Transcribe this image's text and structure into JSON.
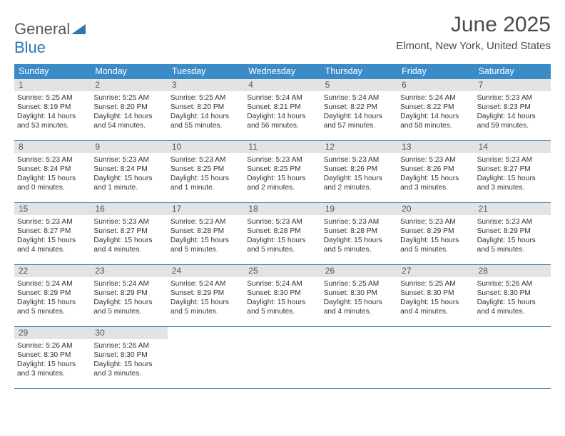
{
  "logo": {
    "word1": "General",
    "word2": "Blue"
  },
  "header": {
    "month": "June 2025",
    "location": "Elmont, New York, United States"
  },
  "colors": {
    "header_bg": "#3b8bc9",
    "header_text": "#ffffff",
    "rule": "#2f74b5",
    "date_bg": "#e3e3e3",
    "text": "#333333",
    "logo_gray": "#5a5a5a",
    "logo_blue": "#2f74b5"
  },
  "dayNames": [
    "Sunday",
    "Monday",
    "Tuesday",
    "Wednesday",
    "Thursday",
    "Friday",
    "Saturday"
  ],
  "weeks": [
    [
      {
        "n": "1",
        "sr": "5:25 AM",
        "ss": "8:19 PM",
        "dl": "14 hours and 53 minutes."
      },
      {
        "n": "2",
        "sr": "5:25 AM",
        "ss": "8:20 PM",
        "dl": "14 hours and 54 minutes."
      },
      {
        "n": "3",
        "sr": "5:25 AM",
        "ss": "8:20 PM",
        "dl": "14 hours and 55 minutes."
      },
      {
        "n": "4",
        "sr": "5:24 AM",
        "ss": "8:21 PM",
        "dl": "14 hours and 56 minutes."
      },
      {
        "n": "5",
        "sr": "5:24 AM",
        "ss": "8:22 PM",
        "dl": "14 hours and 57 minutes."
      },
      {
        "n": "6",
        "sr": "5:24 AM",
        "ss": "8:22 PM",
        "dl": "14 hours and 58 minutes."
      },
      {
        "n": "7",
        "sr": "5:23 AM",
        "ss": "8:23 PM",
        "dl": "14 hours and 59 minutes."
      }
    ],
    [
      {
        "n": "8",
        "sr": "5:23 AM",
        "ss": "8:24 PM",
        "dl": "15 hours and 0 minutes."
      },
      {
        "n": "9",
        "sr": "5:23 AM",
        "ss": "8:24 PM",
        "dl": "15 hours and 1 minute."
      },
      {
        "n": "10",
        "sr": "5:23 AM",
        "ss": "8:25 PM",
        "dl": "15 hours and 1 minute."
      },
      {
        "n": "11",
        "sr": "5:23 AM",
        "ss": "8:25 PM",
        "dl": "15 hours and 2 minutes."
      },
      {
        "n": "12",
        "sr": "5:23 AM",
        "ss": "8:26 PM",
        "dl": "15 hours and 2 minutes."
      },
      {
        "n": "13",
        "sr": "5:23 AM",
        "ss": "8:26 PM",
        "dl": "15 hours and 3 minutes."
      },
      {
        "n": "14",
        "sr": "5:23 AM",
        "ss": "8:27 PM",
        "dl": "15 hours and 3 minutes."
      }
    ],
    [
      {
        "n": "15",
        "sr": "5:23 AM",
        "ss": "8:27 PM",
        "dl": "15 hours and 4 minutes."
      },
      {
        "n": "16",
        "sr": "5:23 AM",
        "ss": "8:27 PM",
        "dl": "15 hours and 4 minutes."
      },
      {
        "n": "17",
        "sr": "5:23 AM",
        "ss": "8:28 PM",
        "dl": "15 hours and 5 minutes."
      },
      {
        "n": "18",
        "sr": "5:23 AM",
        "ss": "8:28 PM",
        "dl": "15 hours and 5 minutes."
      },
      {
        "n": "19",
        "sr": "5:23 AM",
        "ss": "8:28 PM",
        "dl": "15 hours and 5 minutes."
      },
      {
        "n": "20",
        "sr": "5:23 AM",
        "ss": "8:29 PM",
        "dl": "15 hours and 5 minutes."
      },
      {
        "n": "21",
        "sr": "5:23 AM",
        "ss": "8:29 PM",
        "dl": "15 hours and 5 minutes."
      }
    ],
    [
      {
        "n": "22",
        "sr": "5:24 AM",
        "ss": "8:29 PM",
        "dl": "15 hours and 5 minutes."
      },
      {
        "n": "23",
        "sr": "5:24 AM",
        "ss": "8:29 PM",
        "dl": "15 hours and 5 minutes."
      },
      {
        "n": "24",
        "sr": "5:24 AM",
        "ss": "8:29 PM",
        "dl": "15 hours and 5 minutes."
      },
      {
        "n": "25",
        "sr": "5:24 AM",
        "ss": "8:30 PM",
        "dl": "15 hours and 5 minutes."
      },
      {
        "n": "26",
        "sr": "5:25 AM",
        "ss": "8:30 PM",
        "dl": "15 hours and 4 minutes."
      },
      {
        "n": "27",
        "sr": "5:25 AM",
        "ss": "8:30 PM",
        "dl": "15 hours and 4 minutes."
      },
      {
        "n": "28",
        "sr": "5:26 AM",
        "ss": "8:30 PM",
        "dl": "15 hours and 4 minutes."
      }
    ],
    [
      {
        "n": "29",
        "sr": "5:26 AM",
        "ss": "8:30 PM",
        "dl": "15 hours and 3 minutes."
      },
      {
        "n": "30",
        "sr": "5:26 AM",
        "ss": "8:30 PM",
        "dl": "15 hours and 3 minutes."
      },
      null,
      null,
      null,
      null,
      null
    ]
  ],
  "labels": {
    "sunrise": "Sunrise: ",
    "sunset": "Sunset: ",
    "daylight": "Daylight: "
  }
}
